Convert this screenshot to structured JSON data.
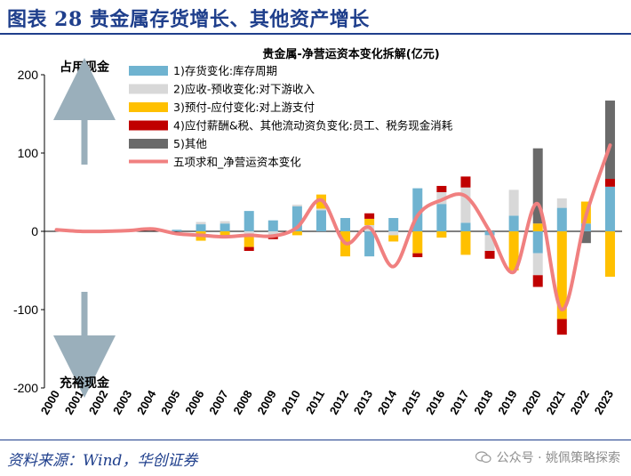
{
  "figure": {
    "title": "图表 28  贵金属存货增长、其他资产增长",
    "source": "资料来源：Wind，华创证券",
    "watermark": "公众号 · 姚佩策略探索"
  },
  "annotations": {
    "top": "占用现金",
    "bottom": "充裕现金"
  },
  "colors": {
    "title": "#1f3f8c",
    "arrow": "#9aafbb",
    "inventory": "#6fb3d0",
    "receivable": "#d8d8d8",
    "prepay": "#ffc000",
    "payable_wage": "#c00000",
    "other": "#6a6a6a",
    "line": "#f08080"
  },
  "chart_data": {
    "type": "bar",
    "stacked": true,
    "title": "贵金属-净营运资本变化拆解(亿元)",
    "categories": [
      "2000",
      "2001",
      "2002",
      "2003",
      "2004",
      "2005",
      "2006",
      "2007",
      "2008",
      "2009",
      "2010",
      "2011",
      "2012",
      "2013",
      "2014",
      "2015",
      "2016",
      "2017",
      "2018",
      "2019",
      "2020",
      "2021",
      "2022",
      "2023"
    ],
    "ylim": [
      -200,
      200
    ],
    "yticks": [
      200,
      100,
      0,
      -100,
      -200
    ],
    "grid": false,
    "legend_position": "top-left",
    "series": [
      {
        "name": "1)存货变化:库存周期",
        "color_key": "inventory",
        "values": [
          0,
          0,
          0,
          0,
          0,
          2,
          9,
          10,
          26,
          14,
          32,
          27,
          17,
          -32,
          17,
          55,
          35,
          11,
          -5,
          20,
          -28,
          30,
          10,
          57
        ]
      },
      {
        "name": "2)应收-预收变化:对下游收入",
        "color_key": "receivable",
        "values": [
          0,
          0,
          0,
          0,
          0,
          0,
          3,
          3,
          -5,
          -5,
          2,
          2,
          0,
          8,
          -5,
          0,
          15,
          45,
          -20,
          33,
          -28,
          12,
          0,
          0
        ]
      },
      {
        "name": "3)预付-应付变化:对上游支付",
        "color_key": "prepay",
        "values": [
          0,
          0,
          0,
          0,
          0,
          0,
          -12,
          -8,
          -15,
          0,
          -5,
          18,
          -32,
          8,
          -8,
          -28,
          -8,
          -30,
          0,
          -50,
          10,
          -112,
          28,
          -58
        ]
      },
      {
        "name": "4)应付薪酬&税、其他流动资负变化:员工、税务现金消耗",
        "color_key": "payable_wage",
        "values": [
          0,
          0,
          0,
          0,
          0,
          0,
          0,
          0,
          -5,
          -5,
          0,
          0,
          0,
          7,
          0,
          -5,
          8,
          14,
          -10,
          0,
          -15,
          -20,
          0,
          10
        ]
      },
      {
        "name": "5)其他",
        "color_key": "other",
        "values": [
          0,
          0,
          0,
          0,
          0,
          0,
          0,
          0,
          0,
          0,
          0,
          0,
          0,
          0,
          0,
          0,
          0,
          0,
          0,
          0,
          96,
          0,
          -15,
          100
        ]
      },
      {
        "name": "五项求和_净营运资本变化",
        "type": "line",
        "color_key": "line",
        "values": [
          2,
          0,
          0,
          1,
          3,
          -3,
          -5,
          -7,
          -5,
          -6,
          5,
          40,
          -15,
          5,
          -45,
          20,
          40,
          45,
          0,
          -52,
          35,
          -100,
          20,
          110
        ]
      }
    ]
  }
}
